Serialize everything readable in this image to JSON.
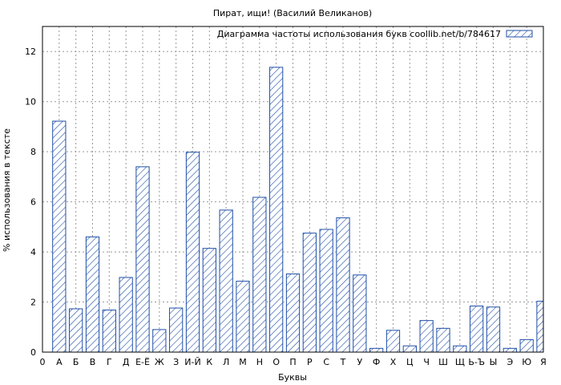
{
  "chart_data": {
    "type": "bar",
    "title": "Пират, ищи! (Василий Великанов)",
    "xlabel": "Буквы",
    "ylabel": "% использования в тексте",
    "legend": "Диаграмма частоты использования букв coollib.net/b/784617",
    "legend_position": "top-right",
    "grid": true,
    "ylim": [
      0,
      13
    ],
    "yticks": [
      0,
      2,
      4,
      6,
      8,
      10,
      12
    ],
    "categories": [
      "0",
      "А",
      "Б",
      "В",
      "Г",
      "Д",
      "Е-Ё",
      "Ж",
      "З",
      "И-Й",
      "К",
      "Л",
      "М",
      "Н",
      "О",
      "П",
      "Р",
      "С",
      "Т",
      "У",
      "Ф",
      "Х",
      "Ц",
      "Ч",
      "Ш",
      "Щ",
      "Ь-Ъ",
      "Ы",
      "Э",
      "Ю",
      "Я"
    ],
    "values": [
      0,
      9.22,
      1.73,
      4.6,
      1.68,
      2.98,
      7.4,
      0.9,
      1.76,
      7.98,
      4.14,
      5.67,
      2.83,
      6.18,
      11.37,
      3.12,
      4.75,
      4.9,
      5.36,
      3.08,
      0.15,
      0.87,
      0.25,
      1.26,
      0.95,
      0.25,
      1.84,
      1.8,
      0.15,
      0.5,
      2.03
    ],
    "bar_color": "#1f4fa8"
  }
}
